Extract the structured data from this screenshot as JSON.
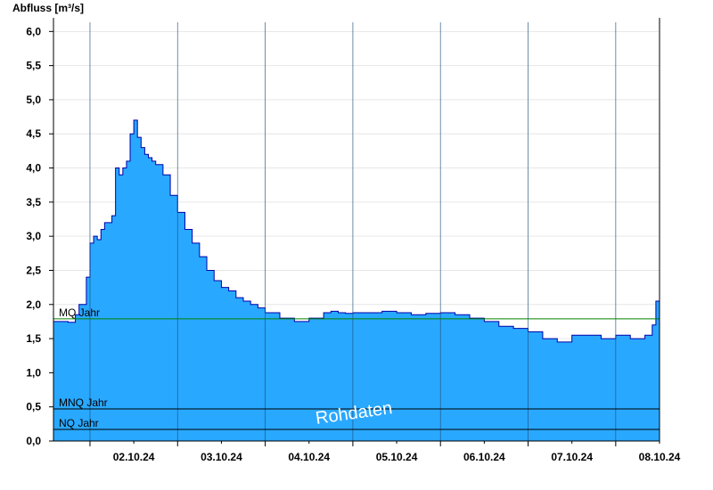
{
  "chart_data": {
    "type": "area",
    "ylabel": "Abfluss [m³/s]",
    "ylim": [
      0,
      6.2
    ],
    "yticks": [
      "0,0",
      "0,5",
      "1,0",
      "1,5",
      "2,0",
      "2,5",
      "3,0",
      "3,5",
      "4,0",
      "4,5",
      "5,0",
      "5,5",
      "6,0"
    ],
    "ytick_values": [
      0,
      0.5,
      1,
      1.5,
      2,
      2.5,
      3,
      3.5,
      4,
      4.5,
      5,
      5.5,
      6
    ],
    "xlim": [
      "2024-10-01T14:00",
      "2024-10-08T12:00"
    ],
    "xticks": [
      "02.10.24",
      "03.10.24",
      "04.10.24",
      "05.10.24",
      "06.10.24",
      "07.10.24",
      "08.10.24"
    ],
    "grid": true,
    "area_color": "#29a8ff",
    "line_color": "#0000aa",
    "series": [
      {
        "x": [
          "2024-10-01T14:00",
          "2024-10-01T16:00",
          "2024-10-01T18:00",
          "2024-10-01T20:00",
          "2024-10-01T21:00",
          "2024-10-01T23:00",
          "2024-10-02T00:00",
          "2024-10-02T01:00",
          "2024-10-02T02:00",
          "2024-10-02T03:00",
          "2024-10-02T04:00",
          "2024-10-02T05:00",
          "2024-10-02T06:00",
          "2024-10-02T07:00",
          "2024-10-02T08:00",
          "2024-10-02T09:00",
          "2024-10-02T10:00",
          "2024-10-02T11:00",
          "2024-10-02T12:00",
          "2024-10-02T13:00",
          "2024-10-02T14:00",
          "2024-10-02T15:00",
          "2024-10-02T16:00",
          "2024-10-02T17:00",
          "2024-10-02T18:00",
          "2024-10-02T20:00",
          "2024-10-02T22:00",
          "2024-10-03T00:00",
          "2024-10-03T02:00",
          "2024-10-03T04:00",
          "2024-10-03T06:00",
          "2024-10-03T08:00",
          "2024-10-03T10:00",
          "2024-10-03T12:00",
          "2024-10-03T14:00",
          "2024-10-03T16:00",
          "2024-10-03T18:00",
          "2024-10-03T20:00",
          "2024-10-03T22:00",
          "2024-10-04T00:00",
          "2024-10-04T04:00",
          "2024-10-04T08:00",
          "2024-10-04T12:00",
          "2024-10-04T16:00",
          "2024-10-04T18:00",
          "2024-10-04T20:00",
          "2024-10-04T22:00",
          "2024-10-05T00:00",
          "2024-10-05T04:00",
          "2024-10-05T08:00",
          "2024-10-05T12:00",
          "2024-10-05T16:00",
          "2024-10-05T20:00",
          "2024-10-06T00:00",
          "2024-10-06T04:00",
          "2024-10-06T08:00",
          "2024-10-06T12:00",
          "2024-10-06T16:00",
          "2024-10-06T20:00",
          "2024-10-07T00:00",
          "2024-10-07T04:00",
          "2024-10-07T08:00",
          "2024-10-07T12:00",
          "2024-10-07T16:00",
          "2024-10-07T20:00",
          "2024-10-08T00:00",
          "2024-10-08T04:00",
          "2024-10-08T08:00",
          "2024-10-08T10:00",
          "2024-10-08T11:00",
          "2024-10-08T12:00"
        ],
        "y": [
          1.75,
          1.75,
          1.74,
          1.85,
          2.0,
          2.4,
          2.9,
          3.0,
          2.95,
          3.1,
          3.2,
          3.2,
          3.3,
          4.0,
          3.9,
          4.0,
          4.1,
          4.5,
          4.7,
          4.45,
          4.3,
          4.2,
          4.15,
          4.1,
          4.05,
          3.9,
          3.6,
          3.35,
          3.1,
          2.9,
          2.7,
          2.5,
          2.35,
          2.25,
          2.2,
          2.1,
          2.05,
          2.0,
          1.95,
          1.88,
          1.8,
          1.75,
          1.8,
          1.88,
          1.9,
          1.88,
          1.87,
          1.88,
          1.88,
          1.9,
          1.88,
          1.85,
          1.87,
          1.88,
          1.85,
          1.8,
          1.75,
          1.68,
          1.65,
          1.6,
          1.5,
          1.45,
          1.55,
          1.55,
          1.5,
          1.55,
          1.5,
          1.55,
          1.7,
          2.05,
          2.25
        ]
      }
    ],
    "reference_lines": [
      {
        "label": "MQ Jahr",
        "value": 1.79,
        "color": "#008000"
      },
      {
        "label": "MNQ Jahr",
        "value": 0.47,
        "color": "#000000"
      },
      {
        "label": "NQ Jahr",
        "value": 0.17,
        "color": "#000000"
      }
    ],
    "watermark": "Rohdaten"
  }
}
